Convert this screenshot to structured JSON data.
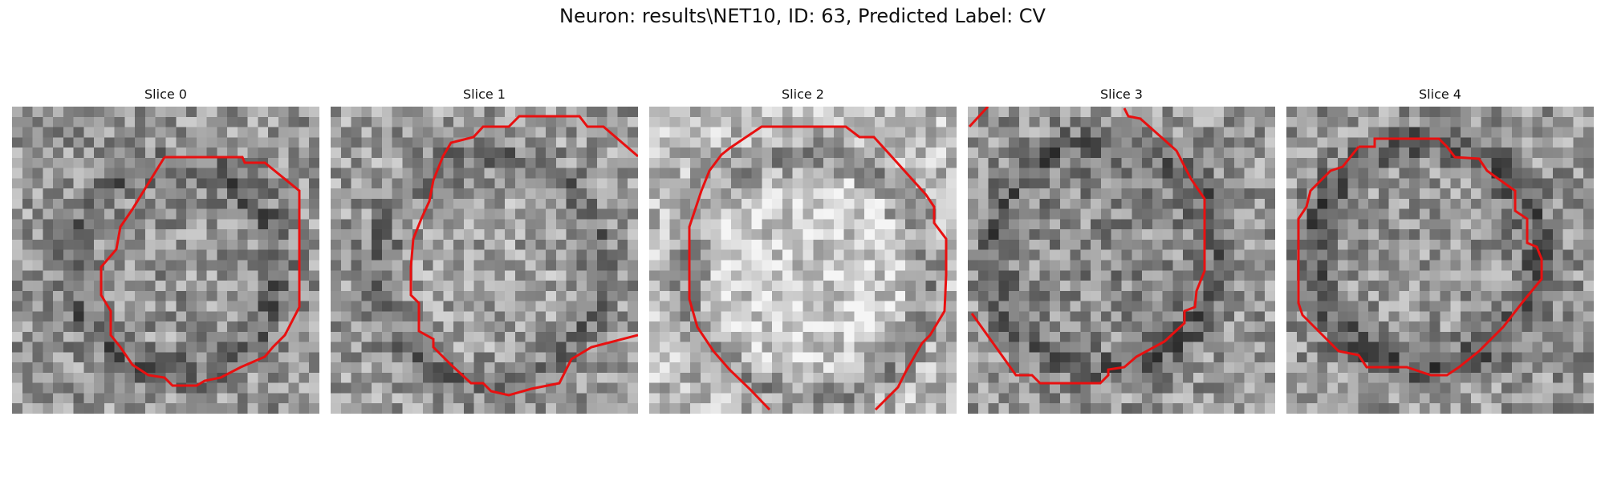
{
  "figure": {
    "suptitle": "Neuron: results\\NET10, ID: 63, Predicted Label: CV",
    "contour_color": "#e81010",
    "panels": [
      {
        "title": "Slice 0"
      },
      {
        "title": "Slice 1"
      },
      {
        "title": "Slice 2"
      },
      {
        "title": "Slice 3"
      },
      {
        "title": "Slice 4"
      }
    ]
  }
}
